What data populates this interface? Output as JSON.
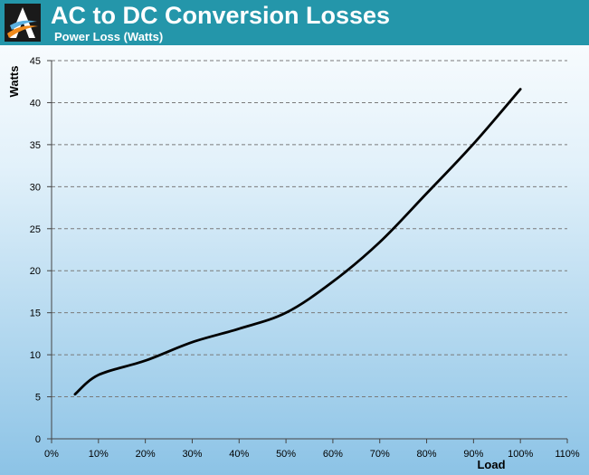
{
  "header": {
    "title": "AC to DC Conversion Losses",
    "subtitle": "Power Loss (Watts)"
  },
  "colors": {
    "header_bg": "#2496aa",
    "line": "#000000",
    "grid": "#7a7a7a"
  },
  "chart_data": {
    "type": "line",
    "title": "AC to DC Conversion Losses",
    "subtitle": "Power Loss (Watts)",
    "xlabel": "Load",
    "ylabel": "Watts",
    "xlim": [
      0,
      110
    ],
    "ylim": [
      0,
      45
    ],
    "x_ticks": [
      "0%",
      "10%",
      "20%",
      "30%",
      "40%",
      "50%",
      "60%",
      "70%",
      "80%",
      "90%",
      "100%",
      "110%"
    ],
    "y_ticks": [
      "0",
      "5",
      "10",
      "15",
      "20",
      "25",
      "30",
      "35",
      "40",
      "45"
    ],
    "grid": "horizontal dashed",
    "legend": "none",
    "series": [
      {
        "x": [
          5,
          10,
          20,
          30,
          40,
          50,
          60,
          70,
          80,
          90,
          100
        ],
        "values": [
          5.3,
          7.6,
          9.3,
          11.5,
          13.1,
          15.0,
          18.7,
          23.4,
          29.2,
          35.1,
          41.6
        ]
      }
    ]
  }
}
